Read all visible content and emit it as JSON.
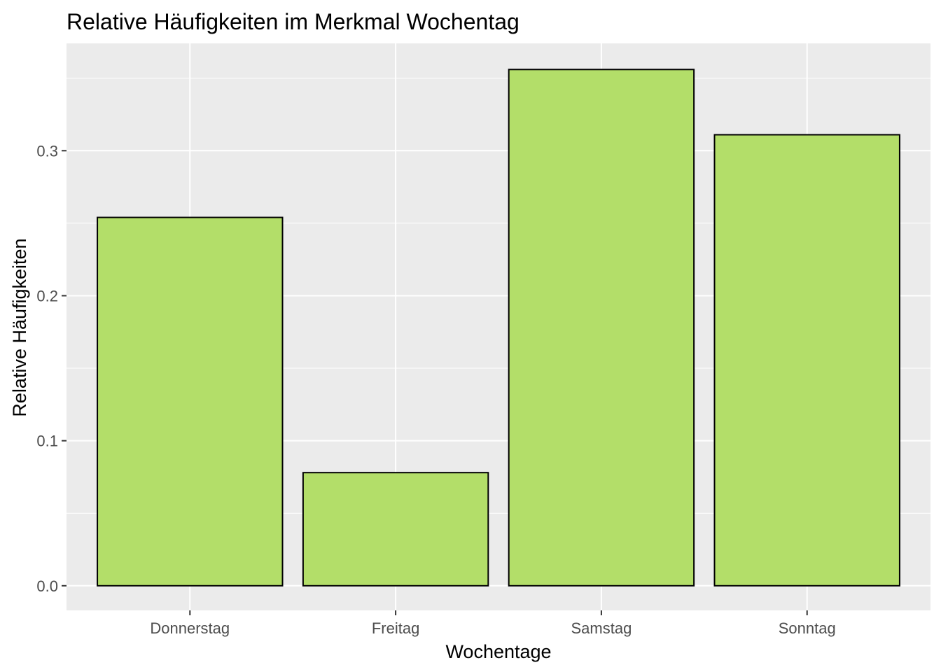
{
  "chart_data": {
    "type": "bar",
    "title": "Relative Häufigkeiten im Merkmal Wochentag",
    "xlabel": "Wochentage",
    "ylabel": "Relative Häufigkeiten",
    "categories": [
      "Donnerstag",
      "Freitag",
      "Samstag",
      "Sonntag"
    ],
    "values": [
      0.254,
      0.078,
      0.356,
      0.311
    ],
    "yticks": [
      "0.0",
      "0.1",
      "0.2",
      "0.3"
    ],
    "ylim": [
      -0.017,
      0.374
    ],
    "grid": true,
    "colors": {
      "bar_fill": "#b3de69",
      "bar_stroke": "#000000",
      "panel_bg": "#ebebeb",
      "grid_major": "#ffffff",
      "tick_color": "#333333"
    }
  }
}
